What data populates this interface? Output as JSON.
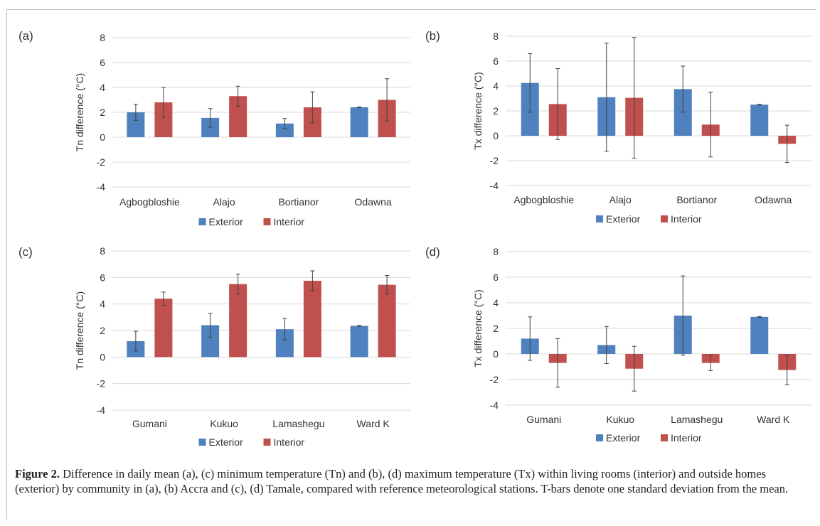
{
  "chart_data": [
    {
      "panel": "(a)",
      "type": "bar",
      "categories": [
        "Agbogbloshie",
        "Alajo",
        "Bortianor",
        "Odawna"
      ],
      "ylabel": "Tn difference (°C)",
      "ylim": [
        -4,
        8
      ],
      "yticks": [
        -4,
        -2,
        0,
        2,
        4,
        6,
        8
      ],
      "grid": true,
      "legend": "bottom",
      "series": [
        {
          "name": "Exterior",
          "color": "#4e81bd",
          "values": [
            2.0,
            1.55,
            1.1,
            2.4
          ],
          "sd": [
            0.65,
            0.75,
            0.4,
            0.03
          ]
        },
        {
          "name": "Interior",
          "color": "#c0504d",
          "values": [
            2.8,
            3.3,
            2.4,
            3.0
          ],
          "sd": [
            1.2,
            0.8,
            1.25,
            1.7
          ]
        }
      ]
    },
    {
      "panel": "(b)",
      "type": "bar",
      "categories": [
        "Agbogbloshie",
        "Alajo",
        "Bortianor",
        "Odawna"
      ],
      "ylabel": "Tx difference (°C)",
      "ylim": [
        -4,
        8
      ],
      "yticks": [
        -4,
        -2,
        0,
        2,
        4,
        6,
        8
      ],
      "grid": true,
      "legend": "bottom",
      "series": [
        {
          "name": "Exterior",
          "color": "#4e81bd",
          "values": [
            4.25,
            3.1,
            3.75,
            2.5
          ],
          "sd": [
            2.35,
            4.35,
            1.85,
            0.03
          ]
        },
        {
          "name": "Interior",
          "color": "#c0504d",
          "values": [
            2.55,
            3.05,
            0.9,
            -0.65
          ],
          "sd": [
            2.85,
            4.85,
            2.6,
            1.5
          ]
        }
      ]
    },
    {
      "panel": "(c)",
      "type": "bar",
      "categories": [
        "Gumani",
        "Kukuo",
        "Lamashegu",
        "Ward K"
      ],
      "ylabel": "Tn difference (°C)",
      "ylim": [
        -4,
        8
      ],
      "yticks": [
        -4,
        -2,
        0,
        2,
        4,
        6,
        8
      ],
      "grid": true,
      "legend": "bottom",
      "series": [
        {
          "name": "Exterior",
          "color": "#4e81bd",
          "values": [
            1.2,
            2.4,
            2.1,
            2.35
          ],
          "sd": [
            0.75,
            0.9,
            0.8,
            0.03
          ]
        },
        {
          "name": "Interior",
          "color": "#c0504d",
          "values": [
            4.4,
            5.5,
            5.75,
            5.45
          ],
          "sd": [
            0.5,
            0.75,
            0.75,
            0.7
          ]
        }
      ]
    },
    {
      "panel": "(d)",
      "type": "bar",
      "categories": [
        "Gumani",
        "Kukuo",
        "Lamashegu",
        "Ward K"
      ],
      "ylabel": "Tx difference (°C)",
      "ylim": [
        -4,
        8
      ],
      "yticks": [
        -4,
        -2,
        0,
        2,
        4,
        6,
        8
      ],
      "grid": true,
      "legend": "bottom",
      "series": [
        {
          "name": "Exterior",
          "color": "#4e81bd",
          "values": [
            1.2,
            0.7,
            3.0,
            2.9
          ],
          "sd": [
            1.7,
            1.45,
            3.1,
            0.03
          ]
        },
        {
          "name": "Interior",
          "color": "#c0504d",
          "values": [
            -0.7,
            -1.15,
            -0.7,
            -1.25
          ],
          "sd": [
            1.9,
            1.75,
            0.6,
            1.15
          ]
        }
      ]
    }
  ],
  "caption": {
    "label": "Figure 2.",
    "text": " Difference in daily mean (a), (c) minimum temperature (Tn) and (b), (d) maximum temperature (Tx) within living rooms (interior) and outside homes (exterior) by community in (a), (b) Accra and (c), (d) Tamale, compared with reference meteorological stations. T-bars denote one standard deviation from the mean."
  }
}
